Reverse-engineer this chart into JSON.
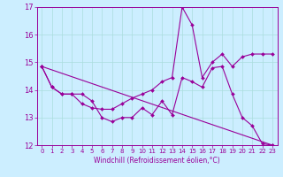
{
  "title": "",
  "xlabel": "Windchill (Refroidissement éolien,°C)",
  "background_color": "#cceeff",
  "line_color": "#990099",
  "grid_color": "#aadddd",
  "xlim": [
    -0.5,
    23.5
  ],
  "ylim": [
    12,
    17
  ],
  "yticks": [
    12,
    13,
    14,
    15,
    16,
    17
  ],
  "xticks": [
    0,
    1,
    2,
    3,
    4,
    5,
    6,
    7,
    8,
    9,
    10,
    11,
    12,
    13,
    14,
    15,
    16,
    17,
    18,
    19,
    20,
    21,
    22,
    23
  ],
  "line1_x": [
    0,
    1,
    2,
    3,
    4,
    5,
    6,
    7,
    8,
    9,
    10,
    11,
    12,
    13,
    14,
    15,
    16,
    17,
    18,
    19,
    20,
    21,
    22,
    23
  ],
  "line1_y": [
    14.85,
    14.1,
    13.85,
    13.85,
    13.85,
    13.6,
    13.0,
    12.85,
    13.0,
    13.0,
    13.35,
    13.1,
    13.6,
    13.1,
    14.45,
    14.3,
    14.1,
    14.8,
    14.85,
    13.85,
    13.0,
    12.7,
    12.05,
    12.0
  ],
  "line2_x": [
    0,
    1,
    2,
    3,
    4,
    5,
    6,
    7,
    8,
    9,
    10,
    11,
    12,
    13,
    14,
    15,
    16,
    17,
    18,
    19,
    20,
    21,
    22,
    23
  ],
  "line2_y": [
    14.85,
    14.1,
    13.85,
    13.85,
    13.5,
    13.35,
    13.3,
    13.3,
    13.5,
    13.7,
    13.85,
    14.0,
    14.3,
    14.45,
    17.0,
    16.35,
    14.45,
    15.0,
    15.3,
    14.85,
    15.2,
    15.3,
    15.3,
    15.3
  ],
  "line3_x": [
    0,
    23
  ],
  "line3_y": [
    14.85,
    12.0
  ]
}
